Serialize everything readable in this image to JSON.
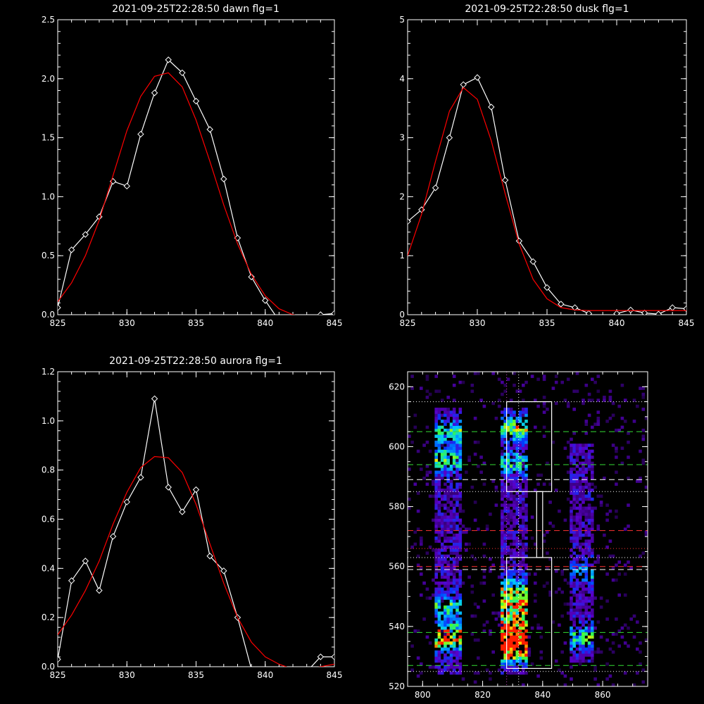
{
  "chart_data": [
    {
      "type": "line",
      "title": "2021-09-25T22:28:50 dawn flg=1",
      "xlim": [
        825,
        845
      ],
      "ylim": [
        0,
        2.5
      ],
      "xticks": [
        825,
        830,
        835,
        840,
        845
      ],
      "yticks": [
        0.0,
        0.5,
        1.0,
        1.5,
        2.0,
        2.5
      ],
      "ytick_labels": [
        "0.0",
        "0.5",
        "1.0",
        "1.5",
        "2.0",
        "2.5"
      ],
      "series": [
        {
          "color": "#ffffff",
          "marker": "diamond",
          "x": [
            825,
            826,
            827,
            828,
            829,
            830,
            831,
            832,
            833,
            834,
            835,
            836,
            837,
            838,
            839,
            840,
            841,
            842,
            843,
            844,
            845
          ],
          "y": [
            0.06,
            0.55,
            0.68,
            0.83,
            1.13,
            1.09,
            1.53,
            1.88,
            2.16,
            2.05,
            1.81,
            1.57,
            1.15,
            0.65,
            0.32,
            0.12,
            -0.05,
            -0.05,
            -0.05,
            0.0,
            0.01
          ]
        },
        {
          "color": "#ff0000",
          "marker": "none",
          "x": [
            825,
            826,
            827,
            828,
            829,
            830,
            831,
            832,
            833,
            834,
            835,
            836,
            837,
            838,
            839,
            840,
            841,
            842,
            843,
            844,
            845
          ],
          "y": [
            0.11,
            0.27,
            0.5,
            0.8,
            1.18,
            1.56,
            1.85,
            2.02,
            2.05,
            1.93,
            1.65,
            1.3,
            0.93,
            0.6,
            0.34,
            0.16,
            0.05,
            0.0,
            -0.02,
            -0.03,
            -0.03
          ]
        }
      ]
    },
    {
      "type": "line",
      "title": "2021-09-25T22:28:50 dusk flg=1",
      "xlim": [
        825,
        845
      ],
      "ylim": [
        0,
        5
      ],
      "xticks": [
        825,
        830,
        835,
        840,
        845
      ],
      "yticks": [
        0,
        1,
        2,
        3,
        4,
        5
      ],
      "ytick_labels": [
        "0",
        "1",
        "2",
        "3",
        "4",
        "5"
      ],
      "series": [
        {
          "color": "#ffffff",
          "marker": "diamond",
          "x": [
            825,
            826,
            827,
            828,
            829,
            830,
            831,
            832,
            833,
            834,
            835,
            836,
            837,
            838,
            839,
            840,
            841,
            842,
            843,
            844,
            845
          ],
          "y": [
            1.58,
            1.78,
            2.15,
            3.0,
            3.9,
            4.02,
            3.52,
            2.28,
            1.25,
            0.9,
            0.46,
            0.18,
            0.12,
            0.02,
            -0.08,
            0.02,
            0.08,
            0.03,
            0.01,
            0.12,
            0.1
          ]
        },
        {
          "color": "#ff0000",
          "marker": "none",
          "x": [
            825,
            826,
            827,
            828,
            829,
            830,
            831,
            832,
            833,
            834,
            835,
            836,
            837,
            838,
            839,
            840,
            841,
            842,
            843,
            844,
            845
          ],
          "y": [
            1.0,
            1.7,
            2.6,
            3.45,
            3.85,
            3.65,
            2.95,
            2.05,
            1.2,
            0.6,
            0.27,
            0.12,
            0.08,
            0.07,
            0.07,
            0.07,
            0.07,
            0.07,
            0.07,
            0.07,
            0.07
          ]
        }
      ]
    },
    {
      "type": "line",
      "title": "2021-09-25T22:28:50 aurora flg=1",
      "xlim": [
        825,
        845
      ],
      "ylim": [
        0,
        1.2
      ],
      "xticks": [
        825,
        830,
        835,
        840,
        845
      ],
      "yticks": [
        0.0,
        0.2,
        0.4,
        0.6,
        0.8,
        1.0,
        1.2
      ],
      "ytick_labels": [
        "0.0",
        "0.2",
        "0.4",
        "0.6",
        "0.8",
        "1.0",
        "1.2"
      ],
      "series": [
        {
          "color": "#ffffff",
          "marker": "diamond",
          "x": [
            825,
            826,
            827,
            828,
            829,
            830,
            831,
            832,
            833,
            834,
            835,
            836,
            837,
            838,
            839,
            840,
            841,
            842,
            843,
            844,
            845
          ],
          "y": [
            0.03,
            0.35,
            0.43,
            0.31,
            0.53,
            0.67,
            0.77,
            1.09,
            0.73,
            0.63,
            0.72,
            0.45,
            0.39,
            0.2,
            -0.01,
            -0.05,
            -0.01,
            -0.02,
            -0.02,
            0.04,
            0.04
          ]
        },
        {
          "color": "#ff0000",
          "marker": "none",
          "x": [
            825,
            826,
            827,
            828,
            829,
            830,
            831,
            832,
            833,
            834,
            835,
            836,
            837,
            838,
            839,
            840,
            841,
            842,
            843,
            844,
            845
          ],
          "y": [
            0.13,
            0.21,
            0.31,
            0.43,
            0.58,
            0.71,
            0.81,
            0.855,
            0.85,
            0.79,
            0.66,
            0.5,
            0.34,
            0.2,
            0.1,
            0.04,
            0.01,
            -0.01,
            -0.01,
            0.0,
            0.01
          ]
        }
      ]
    },
    {
      "type": "heatmap",
      "xlim": [
        795,
        875
      ],
      "ylim": [
        520,
        625
      ],
      "xticks": [
        800,
        820,
        840,
        860
      ],
      "yticks": [
        520,
        540,
        560,
        580,
        600,
        620
      ],
      "columns": [
        {
          "name": "left-band",
          "x_range": [
            804,
            812
          ],
          "y_range": [
            524,
            612
          ],
          "hot_y": [
            [
              536,
              0.85
            ],
            [
              546,
              0.45
            ],
            [
              595,
              0.5
            ],
            [
              604,
              0.45
            ]
          ]
        },
        {
          "name": "central-band",
          "x_range": [
            826,
            834
          ],
          "y_range": [
            524,
            612
          ],
          "hot_y": [
            [
              532,
              1.0
            ],
            [
              538,
              0.95
            ],
            [
              546,
              0.7
            ],
            [
              552,
              0.5
            ],
            [
              594,
              0.45
            ],
            [
              606,
              0.6
            ]
          ]
        },
        {
          "name": "right-band",
          "x_range": [
            849,
            856
          ],
          "y_range": [
            528,
            600
          ],
          "hot_y": [
            [
              536,
              0.45
            ],
            [
              558,
              0.3
            ]
          ]
        }
      ],
      "boxes": [
        {
          "x": [
            828,
            843
          ],
          "y": [
            585,
            615
          ],
          "color": "#ffffff"
        },
        {
          "x": [
            828,
            843
          ],
          "y": [
            526,
            563
          ],
          "color": "#ffffff"
        },
        {
          "x": [
            838,
            840
          ],
          "y": [
            563,
            585
          ],
          "color": "#ffffff"
        }
      ],
      "hlines": [
        {
          "y": 615,
          "color": "#ffffff",
          "style": "dotted"
        },
        {
          "y": 605,
          "color": "#33dd33",
          "style": "dashed"
        },
        {
          "y": 594,
          "color": "#33dd33",
          "style": "dashed"
        },
        {
          "y": 589,
          "color": "#ffffff",
          "style": "dashed"
        },
        {
          "y": 585,
          "color": "#ffffff",
          "style": "dotted"
        },
        {
          "y": 572,
          "color": "#ff3333",
          "style": "dashed"
        },
        {
          "y": 566,
          "color": "#ff3333",
          "style": "dotted"
        },
        {
          "y": 563,
          "color": "#ffffff",
          "style": "dotted"
        },
        {
          "y": 560,
          "color": "#ff3333",
          "style": "dashed"
        },
        {
          "y": 559,
          "color": "#ffffff",
          "style": "dashed"
        },
        {
          "y": 538,
          "color": "#33dd33",
          "style": "dashed"
        },
        {
          "y": 527,
          "color": "#33dd33",
          "style": "dashed"
        },
        {
          "y": 525,
          "color": "#ffffff",
          "style": "dotted"
        }
      ],
      "vlines": [
        {
          "x": 828,
          "color": "#cc44cc",
          "style": "dotted"
        },
        {
          "x": 832,
          "color": "#ffffff",
          "style": "dotted"
        }
      ]
    }
  ]
}
